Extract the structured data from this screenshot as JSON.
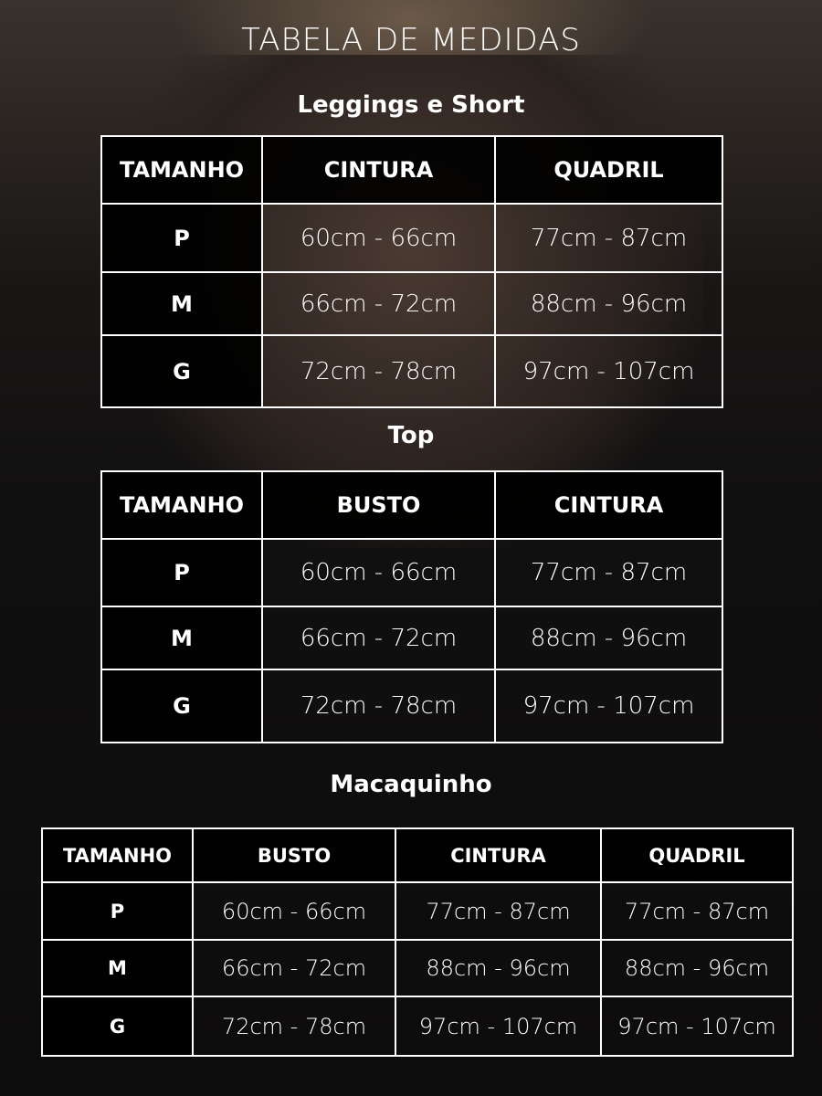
{
  "title": "TABELA DE MEDIDAS",
  "sections": [
    {
      "name": "Leggings e Short",
      "headers": [
        "TAMANHO",
        "CINTURA",
        "QUADRIL"
      ],
      "rows": [
        [
          "P",
          "60cm - 66cm",
          "77cm - 87cm"
        ],
        [
          "M",
          "66cm - 72cm",
          "88cm - 96cm"
        ],
        [
          "G",
          "72cm - 78cm",
          "97cm - 107cm"
        ]
      ]
    },
    {
      "name": "Top",
      "headers": [
        "TAMANHO",
        "BUSTO",
        "CINTURA"
      ],
      "rows": [
        [
          "P",
          "60cm - 66cm",
          "77cm - 87cm"
        ],
        [
          "M",
          "66cm - 72cm",
          "88cm - 96cm"
        ],
        [
          "G",
          "72cm - 78cm",
          "97cm - 107cm"
        ]
      ]
    },
    {
      "name": "Macaquinho",
      "headers": [
        "TAMANHO",
        "BUSTO",
        "CINTURA",
        "QUADRIL"
      ],
      "rows": [
        [
          "P",
          "60cm - 66cm",
          "77cm - 87cm",
          "77cm - 87cm"
        ],
        [
          "M",
          "66cm - 72cm",
          "88cm - 96cm",
          "88cm - 96cm"
        ],
        [
          "G",
          "72cm - 78cm",
          "97cm - 107cm",
          "97cm - 107cm"
        ]
      ]
    }
  ]
}
